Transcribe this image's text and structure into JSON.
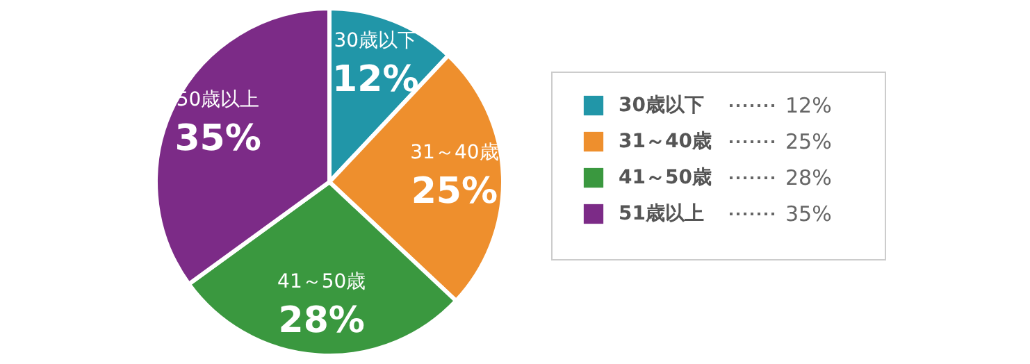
{
  "chart_data": {
    "type": "pie",
    "categories": [
      "30歳以下",
      "31～40歳",
      "41～50歳",
      "51歳以上"
    ],
    "values": [
      12,
      25,
      28,
      35
    ],
    "colors": [
      "#2196a8",
      "#ee8f2d",
      "#3a983f",
      "#7c2b87"
    ],
    "value_labels": [
      "12%",
      "25%",
      "28%",
      "35%"
    ],
    "annotations": [
      "30歳以下",
      "31～40歳",
      "41～50歳",
      "50歳以上"
    ],
    "legend": "right"
  }
}
